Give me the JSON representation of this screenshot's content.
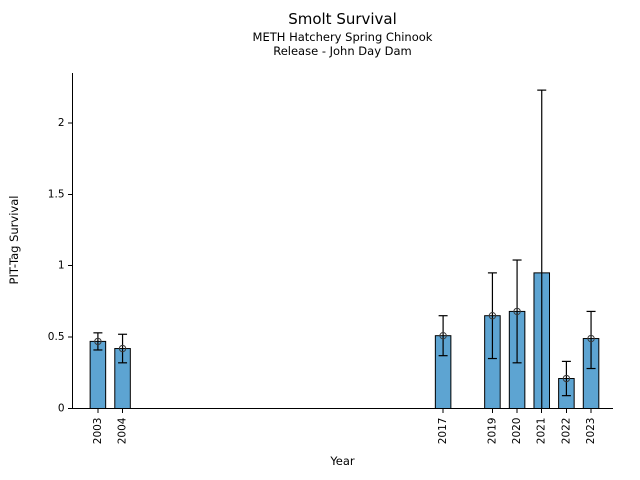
{
  "figure": {
    "title": "Smolt Survival",
    "subtitle_line1": "METH Hatchery Spring Chinook",
    "subtitle_line2": "Release - John Day Dam"
  },
  "chart_data": {
    "type": "bar",
    "title": "Smolt Survival",
    "subtitle": [
      "METH Hatchery Spring Chinook",
      "Release - John Day Dam"
    ],
    "xlabel": "Year",
    "ylabel": "PIT-Tag Survival",
    "xlim": [
      2001.97,
      2023.89
    ],
    "ylim": [
      0,
      2.35
    ],
    "yticks": [
      {
        "value": 0,
        "label": "0"
      },
      {
        "value": 0.5,
        "label": "0.5"
      },
      {
        "value": 1,
        "label": "1"
      },
      {
        "value": 1.5,
        "label": "1.5"
      },
      {
        "value": 2,
        "label": "2"
      }
    ],
    "grid": false,
    "legend": null,
    "bar_color": "#5da4d2",
    "bar_edge_color": "#000000",
    "error_bar_color": "#000000",
    "marker_style": "open-circle",
    "bar_width_years": 0.63,
    "points": [
      {
        "year": "2003",
        "x": 2003,
        "value": 0.47,
        "ci_low": 0.41,
        "ci_high": 0.53,
        "marker": true
      },
      {
        "year": "2004",
        "x": 2004,
        "value": 0.42,
        "ci_low": 0.32,
        "ci_high": 0.52,
        "marker": true
      },
      {
        "year": "2017",
        "x": 2017,
        "value": 0.51,
        "ci_low": 0.37,
        "ci_high": 0.65,
        "marker": true
      },
      {
        "year": "2019",
        "x": 2019,
        "value": 0.65,
        "ci_low": 0.35,
        "ci_high": 0.95,
        "marker": true
      },
      {
        "year": "2020",
        "x": 2020,
        "value": 0.68,
        "ci_low": 0.32,
        "ci_high": 1.04,
        "marker": true
      },
      {
        "year": "2021",
        "x": 2021,
        "value": 0.95,
        "ci_low": 0.0,
        "ci_high": 2.23,
        "marker": false
      },
      {
        "year": "2022",
        "x": 2022,
        "value": 0.21,
        "ci_low": 0.09,
        "ci_high": 0.33,
        "marker": true
      },
      {
        "year": "2023",
        "x": 2023,
        "value": 0.49,
        "ci_low": 0.28,
        "ci_high": 0.68,
        "marker": true
      }
    ]
  }
}
